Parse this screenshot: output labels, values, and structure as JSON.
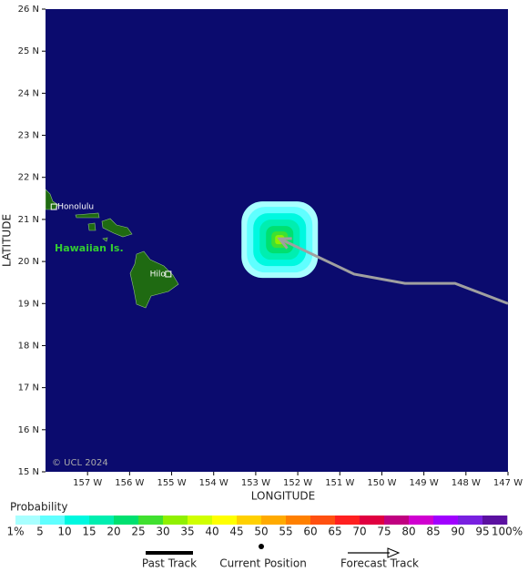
{
  "map": {
    "xlim": [
      -158,
      -147
    ],
    "ylim": [
      15,
      26
    ],
    "xticks": [
      {
        "value": -157,
        "label": "157 W"
      },
      {
        "value": -156,
        "label": "156 W"
      },
      {
        "value": -155,
        "label": "155 W"
      },
      {
        "value": -154,
        "label": "154 W"
      },
      {
        "value": -153,
        "label": "153 W"
      },
      {
        "value": -152,
        "label": "152 W"
      },
      {
        "value": -151,
        "label": "151 W"
      },
      {
        "value": -150,
        "label": "150 W"
      },
      {
        "value": -149,
        "label": "149 W"
      },
      {
        "value": -148,
        "label": "148 W"
      },
      {
        "value": -147,
        "label": "147 W"
      }
    ],
    "yticks": [
      {
        "value": 26,
        "label": "26 N"
      },
      {
        "value": 25,
        "label": "25 N"
      },
      {
        "value": 24,
        "label": "24 N"
      },
      {
        "value": 23,
        "label": "23 N"
      },
      {
        "value": 22,
        "label": "22 N"
      },
      {
        "value": 21,
        "label": "21 N"
      },
      {
        "value": 20,
        "label": "20 N"
      },
      {
        "value": 19,
        "label": "19 N"
      },
      {
        "value": 18,
        "label": "18 N"
      },
      {
        "value": 17,
        "label": "17 N"
      },
      {
        "value": 16,
        "label": "16 N"
      },
      {
        "value": 15,
        "label": "15 N"
      }
    ],
    "xlabel": "LONGITUDE",
    "ylabel": "LATITUDE",
    "ocean_color": "#0b0b6e",
    "land_color": "#1f6a12"
  },
  "places": [
    {
      "label": "Honolulu",
      "lon": -157.8,
      "lat": 21.3
    },
    {
      "label": "Hilo",
      "lon": -155.08,
      "lat": 19.7
    }
  ],
  "region_label": "Hawaiian Is.",
  "copyright": "© UCL 2024",
  "track": {
    "lon": [
      -152.43,
      -150.66,
      -149.45,
      -148.26,
      -147.0
    ],
    "lat": [
      20.54,
      19.7,
      19.48,
      19.48,
      19.0
    ],
    "color": "#a0a0a0"
  },
  "legend": {
    "title": "Probability",
    "labels": [
      "1%",
      "5",
      "10",
      "15",
      "20",
      "25",
      "30",
      "35",
      "40",
      "45",
      "50",
      "55",
      "60",
      "65",
      "70",
      "75",
      "80",
      "85",
      "90",
      "95",
      "100%"
    ],
    "colors": [
      "#a8ffff",
      "#60ffff",
      "#00f8e0",
      "#00eeb0",
      "#00e070",
      "#40e030",
      "#90f000",
      "#d0ff00",
      "#ffff00",
      "#ffd000",
      "#ffaa00",
      "#ff8000",
      "#ff5010",
      "#ff2020",
      "#e00040",
      "#c00080",
      "#d000d0",
      "#a000ff",
      "#7820e0",
      "#5a10a0"
    ]
  },
  "key": {
    "past": "Past Track",
    "current": "Current Position",
    "forecast": "Forecast Track"
  }
}
